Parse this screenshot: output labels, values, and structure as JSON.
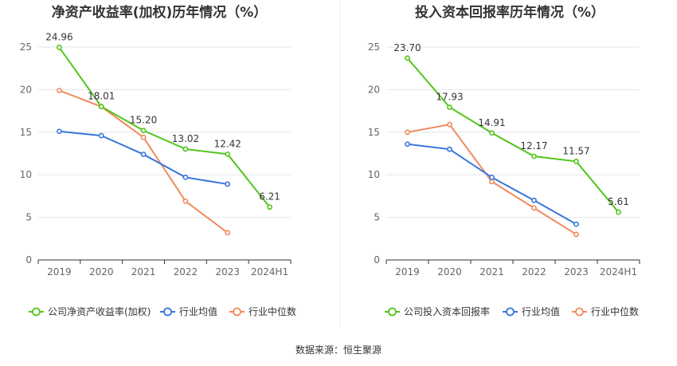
{
  "source_label": "数据来源：恒生聚源",
  "colors": {
    "company": "#52c41a",
    "industry_avg": "#3a75dc",
    "industry_median": "#f08a5d"
  },
  "chart_data": [
    {
      "type": "line",
      "title": "净资产收益率(加权)历年情况（%）",
      "categories": [
        "2019",
        "2020",
        "2021",
        "2022",
        "2023",
        "2024H1"
      ],
      "ylim": [
        0,
        25
      ],
      "yticks": [
        "0",
        "5",
        "10",
        "15",
        "20",
        "25"
      ],
      "grid": true,
      "legend": "bottom",
      "series": [
        {
          "name": "公司净资产收益率(加权)",
          "values": [
            24.96,
            18.01,
            15.2,
            13.02,
            12.42,
            6.21
          ],
          "labels": [
            "24.96",
            "18.01",
            "15.20",
            "13.02",
            "12.42",
            "6.21"
          ]
        },
        {
          "name": "行业均值",
          "values": [
            15.1,
            14.6,
            12.4,
            9.7,
            8.9,
            null
          ]
        },
        {
          "name": "行业中位数",
          "values": [
            19.9,
            18.0,
            14.4,
            6.9,
            3.2,
            null
          ]
        }
      ]
    },
    {
      "type": "line",
      "title": "投入资本回报率历年情况（%）",
      "categories": [
        "2019",
        "2020",
        "2021",
        "2022",
        "2023",
        "2024H1"
      ],
      "ylim": [
        0,
        25
      ],
      "yticks": [
        "0",
        "5",
        "10",
        "15",
        "20",
        "25"
      ],
      "grid": true,
      "legend": "bottom",
      "series": [
        {
          "name": "公司投入资本回报率",
          "values": [
            23.7,
            17.93,
            14.91,
            12.17,
            11.57,
            5.61
          ],
          "labels": [
            "23.70",
            "17.93",
            "14.91",
            "12.17",
            "11.57",
            "5.61"
          ]
        },
        {
          "name": "行业均值",
          "values": [
            13.6,
            13.0,
            9.7,
            7.0,
            4.2,
            null
          ]
        },
        {
          "name": "行业中位数",
          "values": [
            15.0,
            15.9,
            9.2,
            6.1,
            3.0,
            null
          ]
        }
      ]
    }
  ]
}
